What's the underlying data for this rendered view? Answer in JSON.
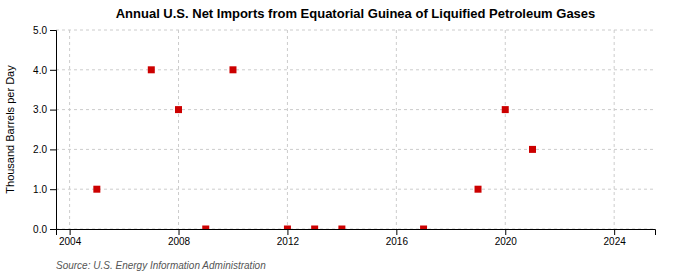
{
  "chart_data": {
    "type": "scatter",
    "title": "Annual U.S. Net Imports from Equatorial Guinea of Liquified Petroleum Gases",
    "ylabel": "Thousand Barrels per Day",
    "source": "Source: U.S. Energy Information Administration",
    "x": [
      2005,
      2007,
      2008,
      2009,
      2010,
      2012,
      2013,
      2014,
      2017,
      2019,
      2020,
      2021
    ],
    "values": [
      1.0,
      4.0,
      3.0,
      0.0,
      4.0,
      0.0,
      0.0,
      0.0,
      0.0,
      1.0,
      3.0,
      2.0
    ],
    "color": "#cc0000",
    "marker": "square",
    "xlim": [
      2003.5,
      2025.5
    ],
    "ylim": [
      0,
      5.0
    ],
    "xticks": [
      2004,
      2008,
      2012,
      2016,
      2020,
      2024
    ],
    "yticks": [
      {
        "value": 0.0,
        "label": "0.0"
      },
      {
        "value": 1.0,
        "label": "1.0"
      },
      {
        "value": 2.0,
        "label": "2.0"
      },
      {
        "value": 3.0,
        "label": "3.0"
      },
      {
        "value": 4.0,
        "label": "4.0"
      },
      {
        "value": 5.0,
        "label": "5.0"
      }
    ],
    "grid": true
  }
}
